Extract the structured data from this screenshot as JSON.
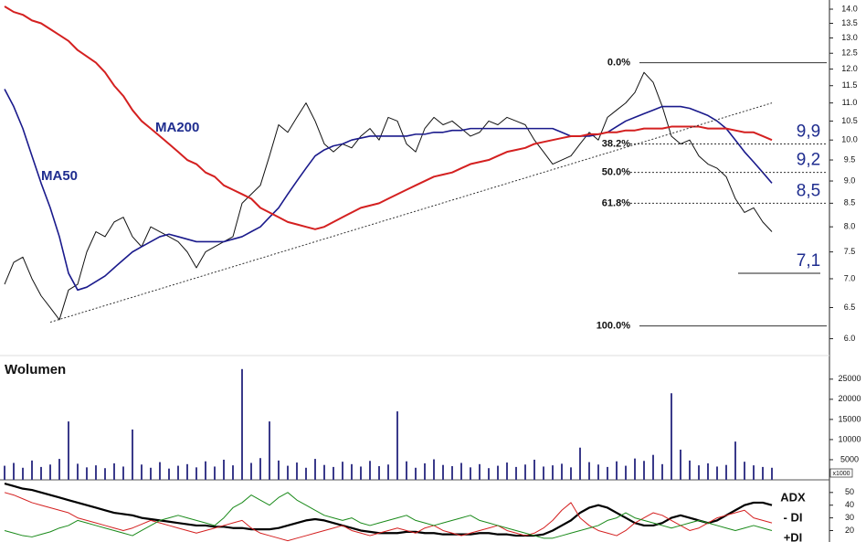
{
  "chart_data": [
    {
      "type": "line",
      "log_scale": true,
      "ylim": [
        5.8,
        14.3
      ],
      "yticks": [
        {
          "value": 14,
          "label": "14.0"
        },
        13.5,
        {
          "value": 13,
          "label": "13.0"
        },
        12.5,
        {
          "value": 12,
          "label": "12.0"
        },
        11.5,
        {
          "value": 11,
          "label": "11.0"
        },
        10.5,
        {
          "value": 10,
          "label": "10.0"
        },
        9.5,
        {
          "value": 9,
          "label": "9.0"
        },
        8.5,
        {
          "value": 8,
          "label": "8.0"
        },
        7.5,
        {
          "value": 7,
          "label": "7.0"
        },
        6.5,
        {
          "value": 6,
          "label": "6.0"
        }
      ],
      "series": [
        {
          "color": "#111111",
          "width": 1,
          "values": [
            6.9,
            7.3,
            7.4,
            7.0,
            6.7,
            6.5,
            6.3,
            6.8,
            6.9,
            7.5,
            7.9,
            7.8,
            8.1,
            8.2,
            7.8,
            7.6,
            8.0,
            7.9,
            7.8,
            7.7,
            7.5,
            7.2,
            7.5,
            7.6,
            7.7,
            7.8,
            8.5,
            8.7,
            8.9,
            9.6,
            10.4,
            10.2,
            10.6,
            11.0,
            10.5,
            9.9,
            9.7,
            9.9,
            9.8,
            10.1,
            10.3,
            10.0,
            10.6,
            10.5,
            9.9,
            9.7,
            10.3,
            10.6,
            10.4,
            10.5,
            10.3,
            10.1,
            10.2,
            10.5,
            10.4,
            10.6,
            10.5,
            10.4,
            10.0,
            9.7,
            9.4,
            9.5,
            9.6,
            9.9,
            10.2,
            10.0,
            10.6,
            10.8,
            11.0,
            11.3,
            11.9,
            11.6,
            10.9,
            10.1,
            9.9,
            10.0,
            9.6,
            9.4,
            9.3,
            9.1,
            8.6,
            8.3,
            8.4,
            8.1,
            7.9
          ]
        },
        {
          "name": "MA50",
          "color": "#1a1a8c",
          "width": 1.6,
          "values": [
            11.4,
            10.9,
            10.3,
            9.6,
            8.95,
            8.4,
            7.8,
            7.1,
            6.8,
            6.85,
            6.95,
            7.05,
            7.2,
            7.35,
            7.5,
            7.6,
            7.7,
            7.8,
            7.85,
            7.8,
            7.75,
            7.7,
            7.7,
            7.7,
            7.7,
            7.75,
            7.8,
            7.9,
            8.0,
            8.2,
            8.4,
            8.7,
            9.0,
            9.3,
            9.6,
            9.75,
            9.85,
            9.9,
            10.0,
            10.05,
            10.1,
            10.1,
            10.1,
            10.1,
            10.1,
            10.15,
            10.15,
            10.2,
            10.2,
            10.25,
            10.25,
            10.3,
            10.3,
            10.3,
            10.3,
            10.3,
            10.3,
            10.3,
            10.3,
            10.3,
            10.3,
            10.2,
            10.1,
            10.1,
            10.1,
            10.15,
            10.2,
            10.35,
            10.5,
            10.6,
            10.7,
            10.8,
            10.9,
            10.9,
            10.9,
            10.85,
            10.75,
            10.65,
            10.5,
            10.3,
            10.0,
            9.7,
            9.45,
            9.2,
            8.95
          ]
        },
        {
          "name": "MA200",
          "color": "#d42020",
          "width": 2,
          "values": [
            14.1,
            13.9,
            13.8,
            13.6,
            13.5,
            13.3,
            13.1,
            12.9,
            12.6,
            12.4,
            12.2,
            11.9,
            11.5,
            11.2,
            10.8,
            10.5,
            10.3,
            10.1,
            9.9,
            9.7,
            9.5,
            9.4,
            9.2,
            9.1,
            8.9,
            8.8,
            8.7,
            8.6,
            8.4,
            8.3,
            8.2,
            8.1,
            8.05,
            8.0,
            7.95,
            8.0,
            8.1,
            8.2,
            8.3,
            8.4,
            8.45,
            8.5,
            8.6,
            8.7,
            8.8,
            8.9,
            9.0,
            9.1,
            9.15,
            9.2,
            9.3,
            9.4,
            9.45,
            9.5,
            9.6,
            9.7,
            9.75,
            9.8,
            9.9,
            9.95,
            10.0,
            10.05,
            10.1,
            10.1,
            10.15,
            10.15,
            10.2,
            10.2,
            10.25,
            10.25,
            10.3,
            10.3,
            10.3,
            10.35,
            10.35,
            10.35,
            10.35,
            10.3,
            10.3,
            10.3,
            10.25,
            10.2,
            10.2,
            10.1,
            10.0
          ]
        }
      ],
      "trendline": {
        "x": [
          5,
          84
        ],
        "values": [
          6.26,
          11.0
        ]
      },
      "fib_levels": [
        {
          "label": "0.0%",
          "value": 12.2,
          "style": "solid"
        },
        {
          "label": "38.2%",
          "value": 9.9,
          "style": "dotted"
        },
        {
          "label": "50.0%",
          "value": 9.2,
          "style": "dotted"
        },
        {
          "label": "61.8%",
          "value": 8.5,
          "style": "dotted"
        },
        {
          "label": "100.0%",
          "value": 6.2,
          "style": "solid"
        }
      ],
      "price_labels": [
        {
          "value": 9.9,
          "label": "9,9"
        },
        {
          "value": 9.2,
          "label": "9,2"
        },
        {
          "value": 8.5,
          "label": "8,5"
        },
        {
          "value": 7.1,
          "label": "7,1",
          "line": true
        }
      ]
    },
    {
      "type": "bar",
      "title": "Wolumen",
      "unit_label": "x1000",
      "color": "#3a3a8a",
      "ylim": [
        0,
        29500
      ],
      "yticks": [
        5000,
        10000,
        15000,
        20000,
        25000
      ],
      "values": [
        3500,
        4200,
        3000,
        4800,
        3200,
        3800,
        5200,
        14500,
        4000,
        3100,
        3600,
        2900,
        4100,
        3300,
        12500,
        3800,
        3000,
        4400,
        2800,
        3500,
        3900,
        3100,
        4600,
        3300,
        5000,
        3600,
        27500,
        4200,
        5400,
        14500,
        4800,
        3500,
        4300,
        3000,
        5200,
        3700,
        3200,
        4500,
        3900,
        3300,
        4700,
        3400,
        3800,
        17000,
        4600,
        3000,
        4100,
        5100,
        3700,
        3400,
        4200,
        3100,
        3900,
        2900,
        3500,
        4300,
        3200,
        3800,
        5000,
        3300,
        3600,
        4000,
        3100,
        8000,
        4400,
        3800,
        3200,
        4600,
        3500,
        5300,
        4700,
        6200,
        3900,
        21500,
        7500,
        4800,
        3600,
        4100,
        3300,
        3700,
        9500,
        4500,
        3600,
        3200,
        3000
      ]
    },
    {
      "type": "line",
      "ylim": [
        11,
        58.5
      ],
      "yticks": [
        20,
        30,
        40,
        50
      ],
      "series": [
        {
          "name": "ADX",
          "color": "#000000",
          "width": 2.2,
          "values": [
            57,
            55,
            53,
            52,
            50,
            48,
            46,
            44,
            42,
            40,
            38,
            36,
            34,
            33,
            32,
            30,
            29,
            28,
            27,
            26,
            25,
            24,
            24,
            23,
            23,
            22,
            22,
            21,
            21,
            21,
            22,
            24,
            26,
            28,
            29,
            28,
            26,
            24,
            22,
            20,
            19,
            18,
            18,
            18,
            19,
            19,
            18,
            18,
            17,
            17,
            17,
            17,
            18,
            18,
            17,
            17,
            16,
            16,
            16,
            17,
            20,
            24,
            28,
            34,
            38,
            40,
            38,
            34,
            30,
            26,
            24,
            24,
            26,
            30,
            32,
            30,
            28,
            26,
            28,
            32,
            36,
            40,
            42,
            42,
            40
          ]
        },
        {
          "name": "- DI",
          "color": "#d42020",
          "width": 1,
          "values": [
            50,
            48,
            45,
            42,
            40,
            38,
            36,
            34,
            30,
            28,
            26,
            24,
            22,
            20,
            22,
            25,
            28,
            26,
            24,
            22,
            20,
            18,
            20,
            22,
            24,
            26,
            28,
            22,
            18,
            16,
            14,
            12,
            14,
            16,
            18,
            20,
            22,
            24,
            20,
            18,
            16,
            18,
            20,
            22,
            20,
            18,
            22,
            24,
            20,
            18,
            16,
            18,
            20,
            22,
            24,
            20,
            18,
            16,
            18,
            22,
            28,
            36,
            42,
            30,
            24,
            20,
            18,
            16,
            20,
            26,
            30,
            34,
            32,
            28,
            24,
            20,
            22,
            26,
            30,
            32,
            34,
            36,
            30,
            28,
            26
          ]
        },
        {
          "name": "+DI",
          "color": "#1a8a1a",
          "width": 1,
          "values": [
            20,
            18,
            16,
            15,
            17,
            19,
            22,
            24,
            28,
            26,
            24,
            22,
            20,
            18,
            16,
            20,
            24,
            28,
            30,
            32,
            30,
            28,
            26,
            24,
            30,
            38,
            42,
            48,
            44,
            40,
            46,
            50,
            44,
            40,
            36,
            32,
            30,
            28,
            30,
            26,
            24,
            26,
            28,
            30,
            32,
            28,
            26,
            24,
            26,
            28,
            30,
            32,
            28,
            26,
            24,
            22,
            20,
            18,
            16,
            14,
            14,
            16,
            18,
            20,
            22,
            24,
            28,
            30,
            34,
            30,
            28,
            26,
            24,
            22,
            24,
            26,
            28,
            26,
            24,
            22,
            20,
            22,
            24,
            22,
            20
          ]
        }
      ]
    }
  ]
}
